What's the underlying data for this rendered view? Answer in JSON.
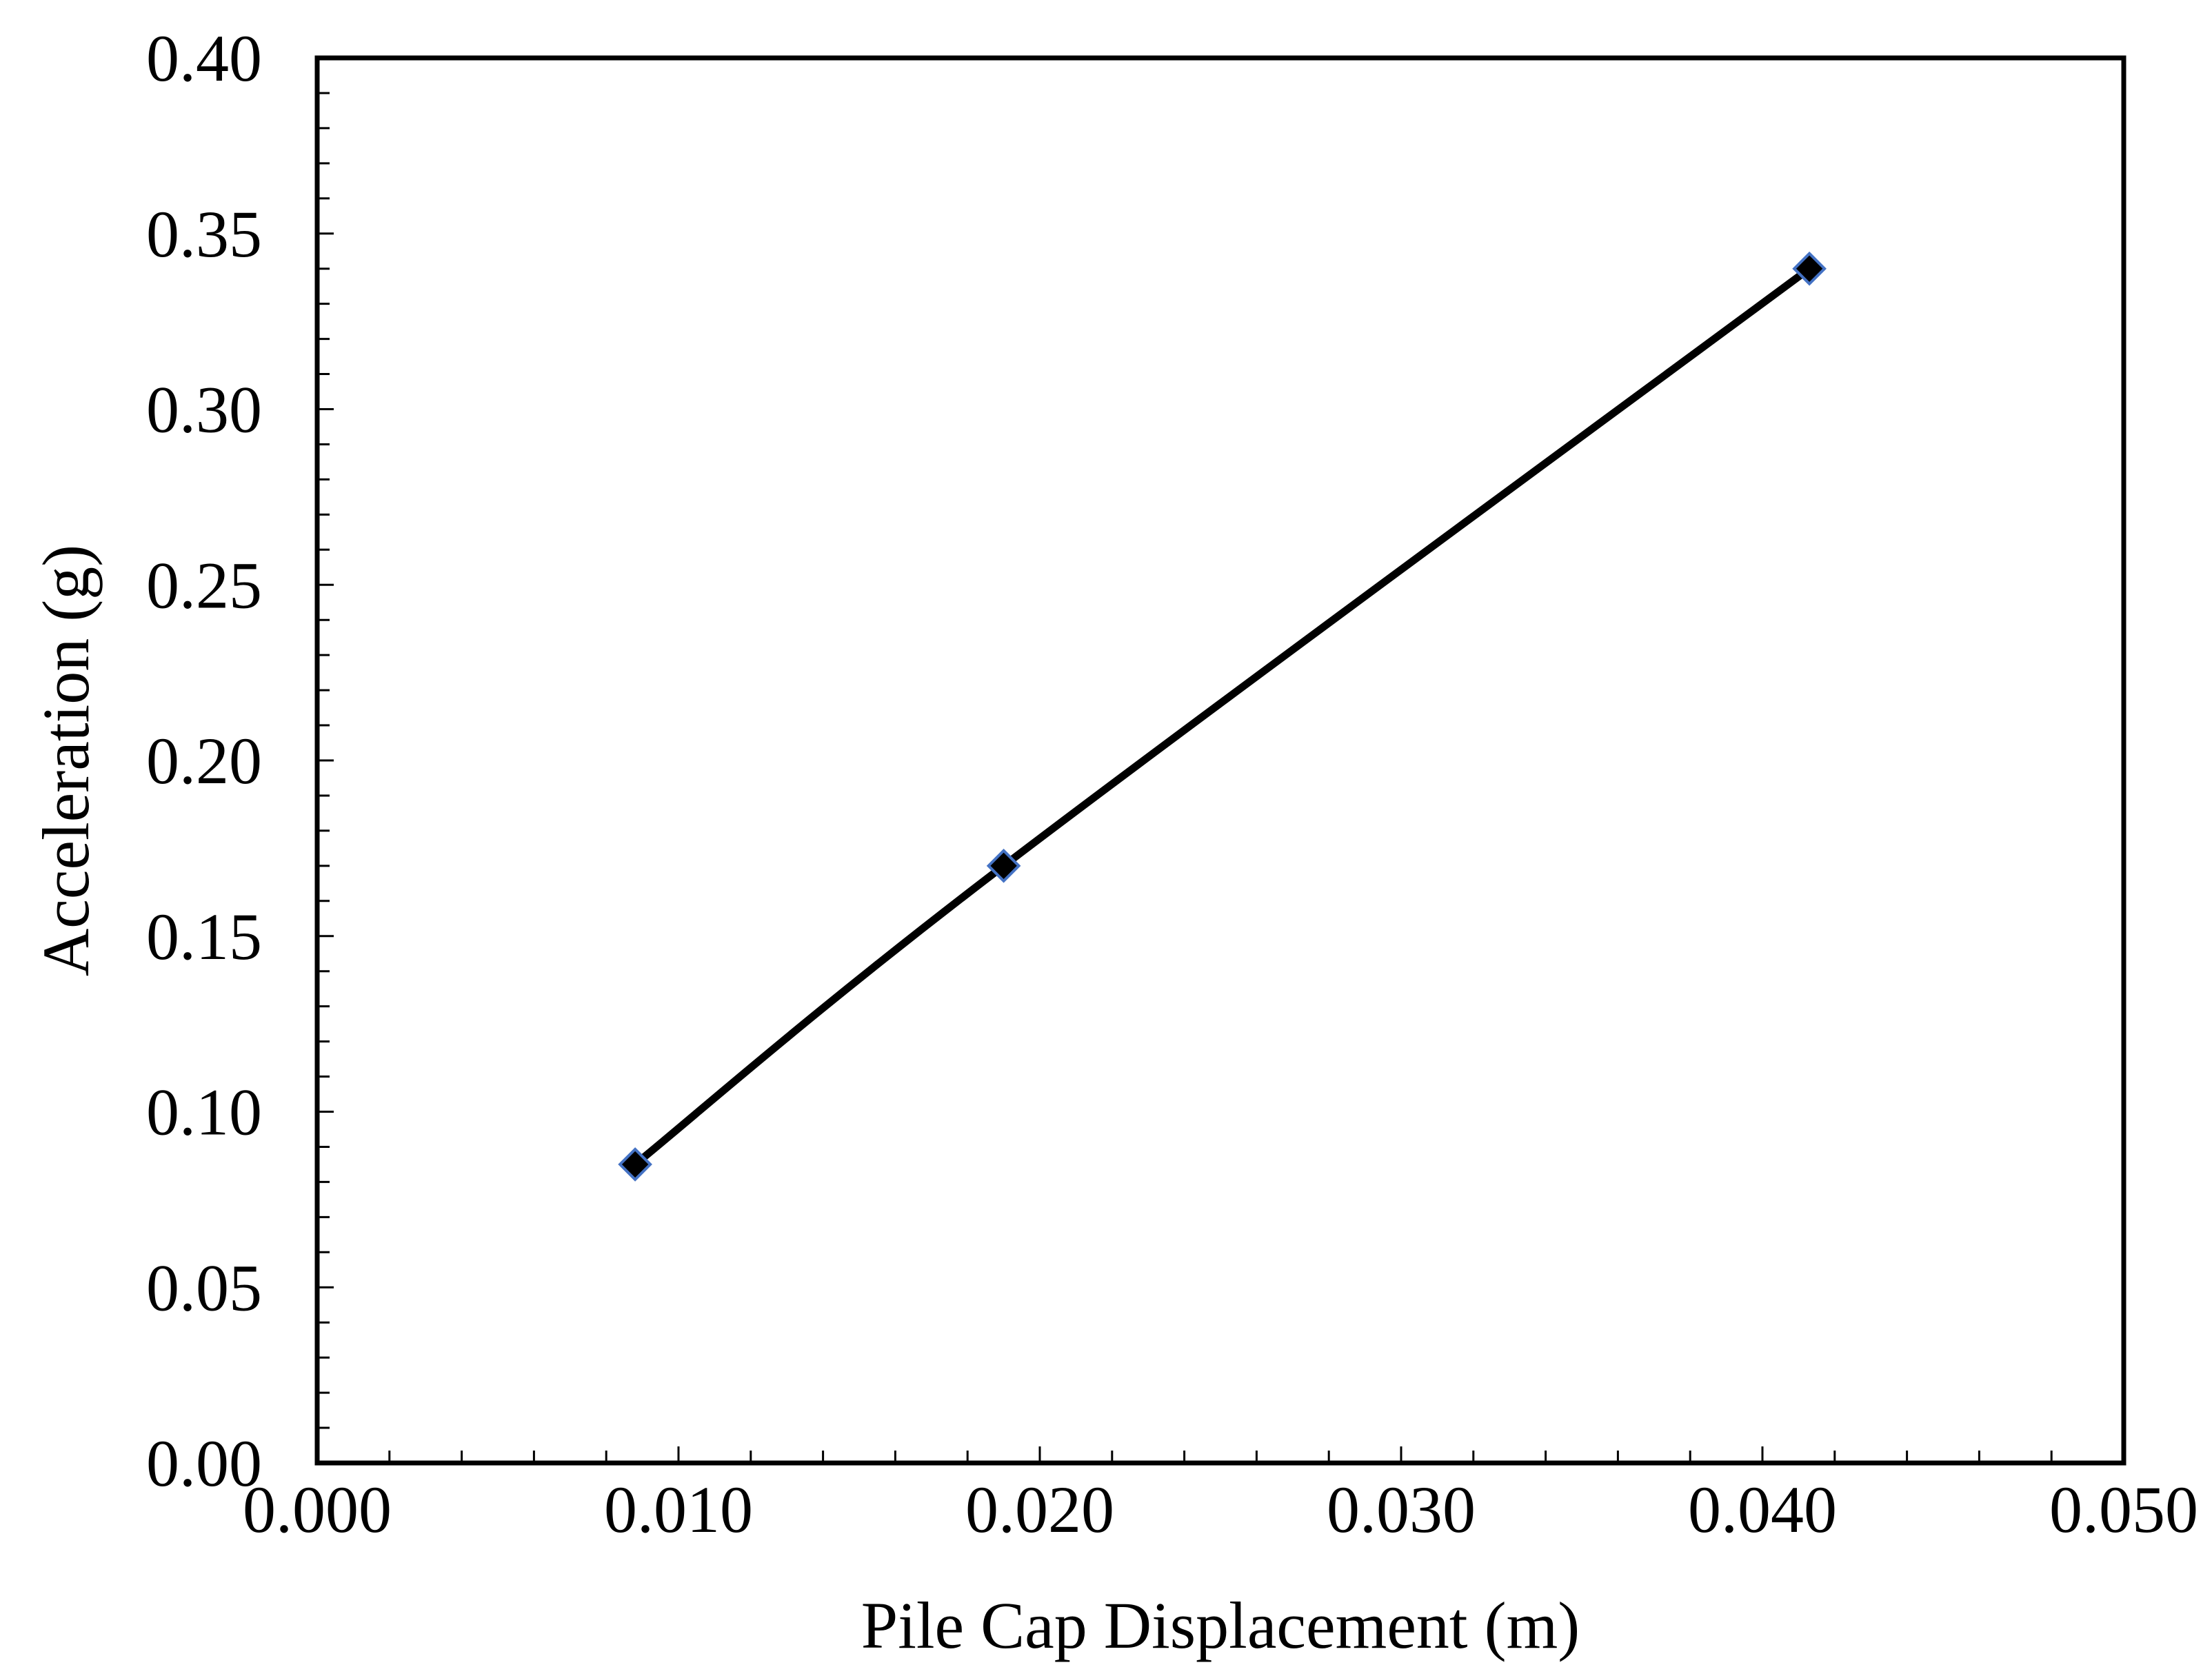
{
  "chart_data": {
    "type": "line",
    "title": "",
    "xlabel": "Pile Cap Displacement (m)",
    "ylabel": "Acceleration (g)",
    "xlim": [
      0.0,
      0.05
    ],
    "ylim": [
      0.0,
      0.4
    ],
    "x_ticks": [
      "0.000",
      "0.010",
      "0.020",
      "0.030",
      "0.040",
      "0.050"
    ],
    "y_ticks": [
      "0.00",
      "0.05",
      "0.10",
      "0.15",
      "0.20",
      "0.25",
      "0.30",
      "0.35",
      "0.40"
    ],
    "grid": false,
    "legend": "none",
    "smooth": true,
    "series": [
      {
        "x": [
          0.0088,
          0.019,
          0.0413
        ],
        "y": [
          0.085,
          0.17,
          0.34
        ],
        "line_color": "#000000",
        "marker": "diamond",
        "marker_fill": "#000000",
        "marker_edge": "#4472c4"
      }
    ]
  }
}
